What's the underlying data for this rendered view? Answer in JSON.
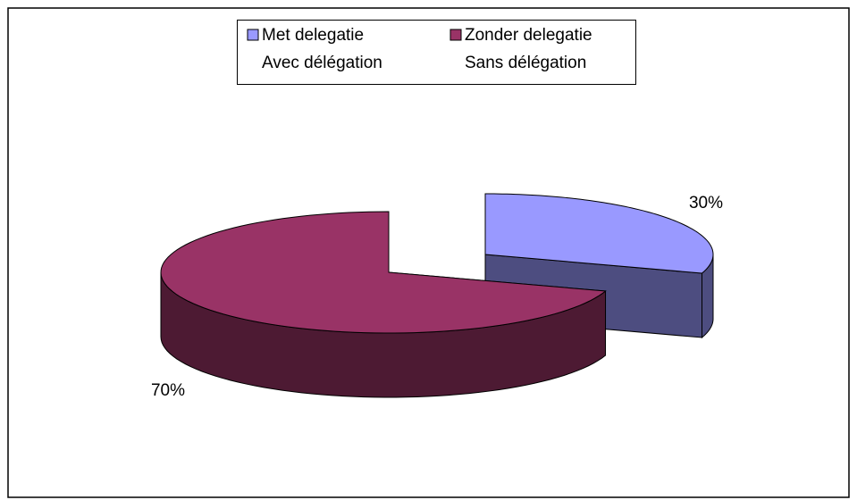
{
  "chart_data": {
    "type": "pie",
    "three_d": true,
    "exploded": true,
    "categories": [
      [
        "Met delegatie",
        "Avec délégation"
      ],
      [
        "Zonder delegatie",
        "Sans délégation"
      ]
    ],
    "values": [
      30,
      70
    ],
    "value_labels": [
      "30%",
      "70%"
    ],
    "colors": [
      "#9999ff",
      "#993366"
    ],
    "side_colors": [
      "#4d4d80",
      "#4d1a33"
    ],
    "legend": "top"
  }
}
